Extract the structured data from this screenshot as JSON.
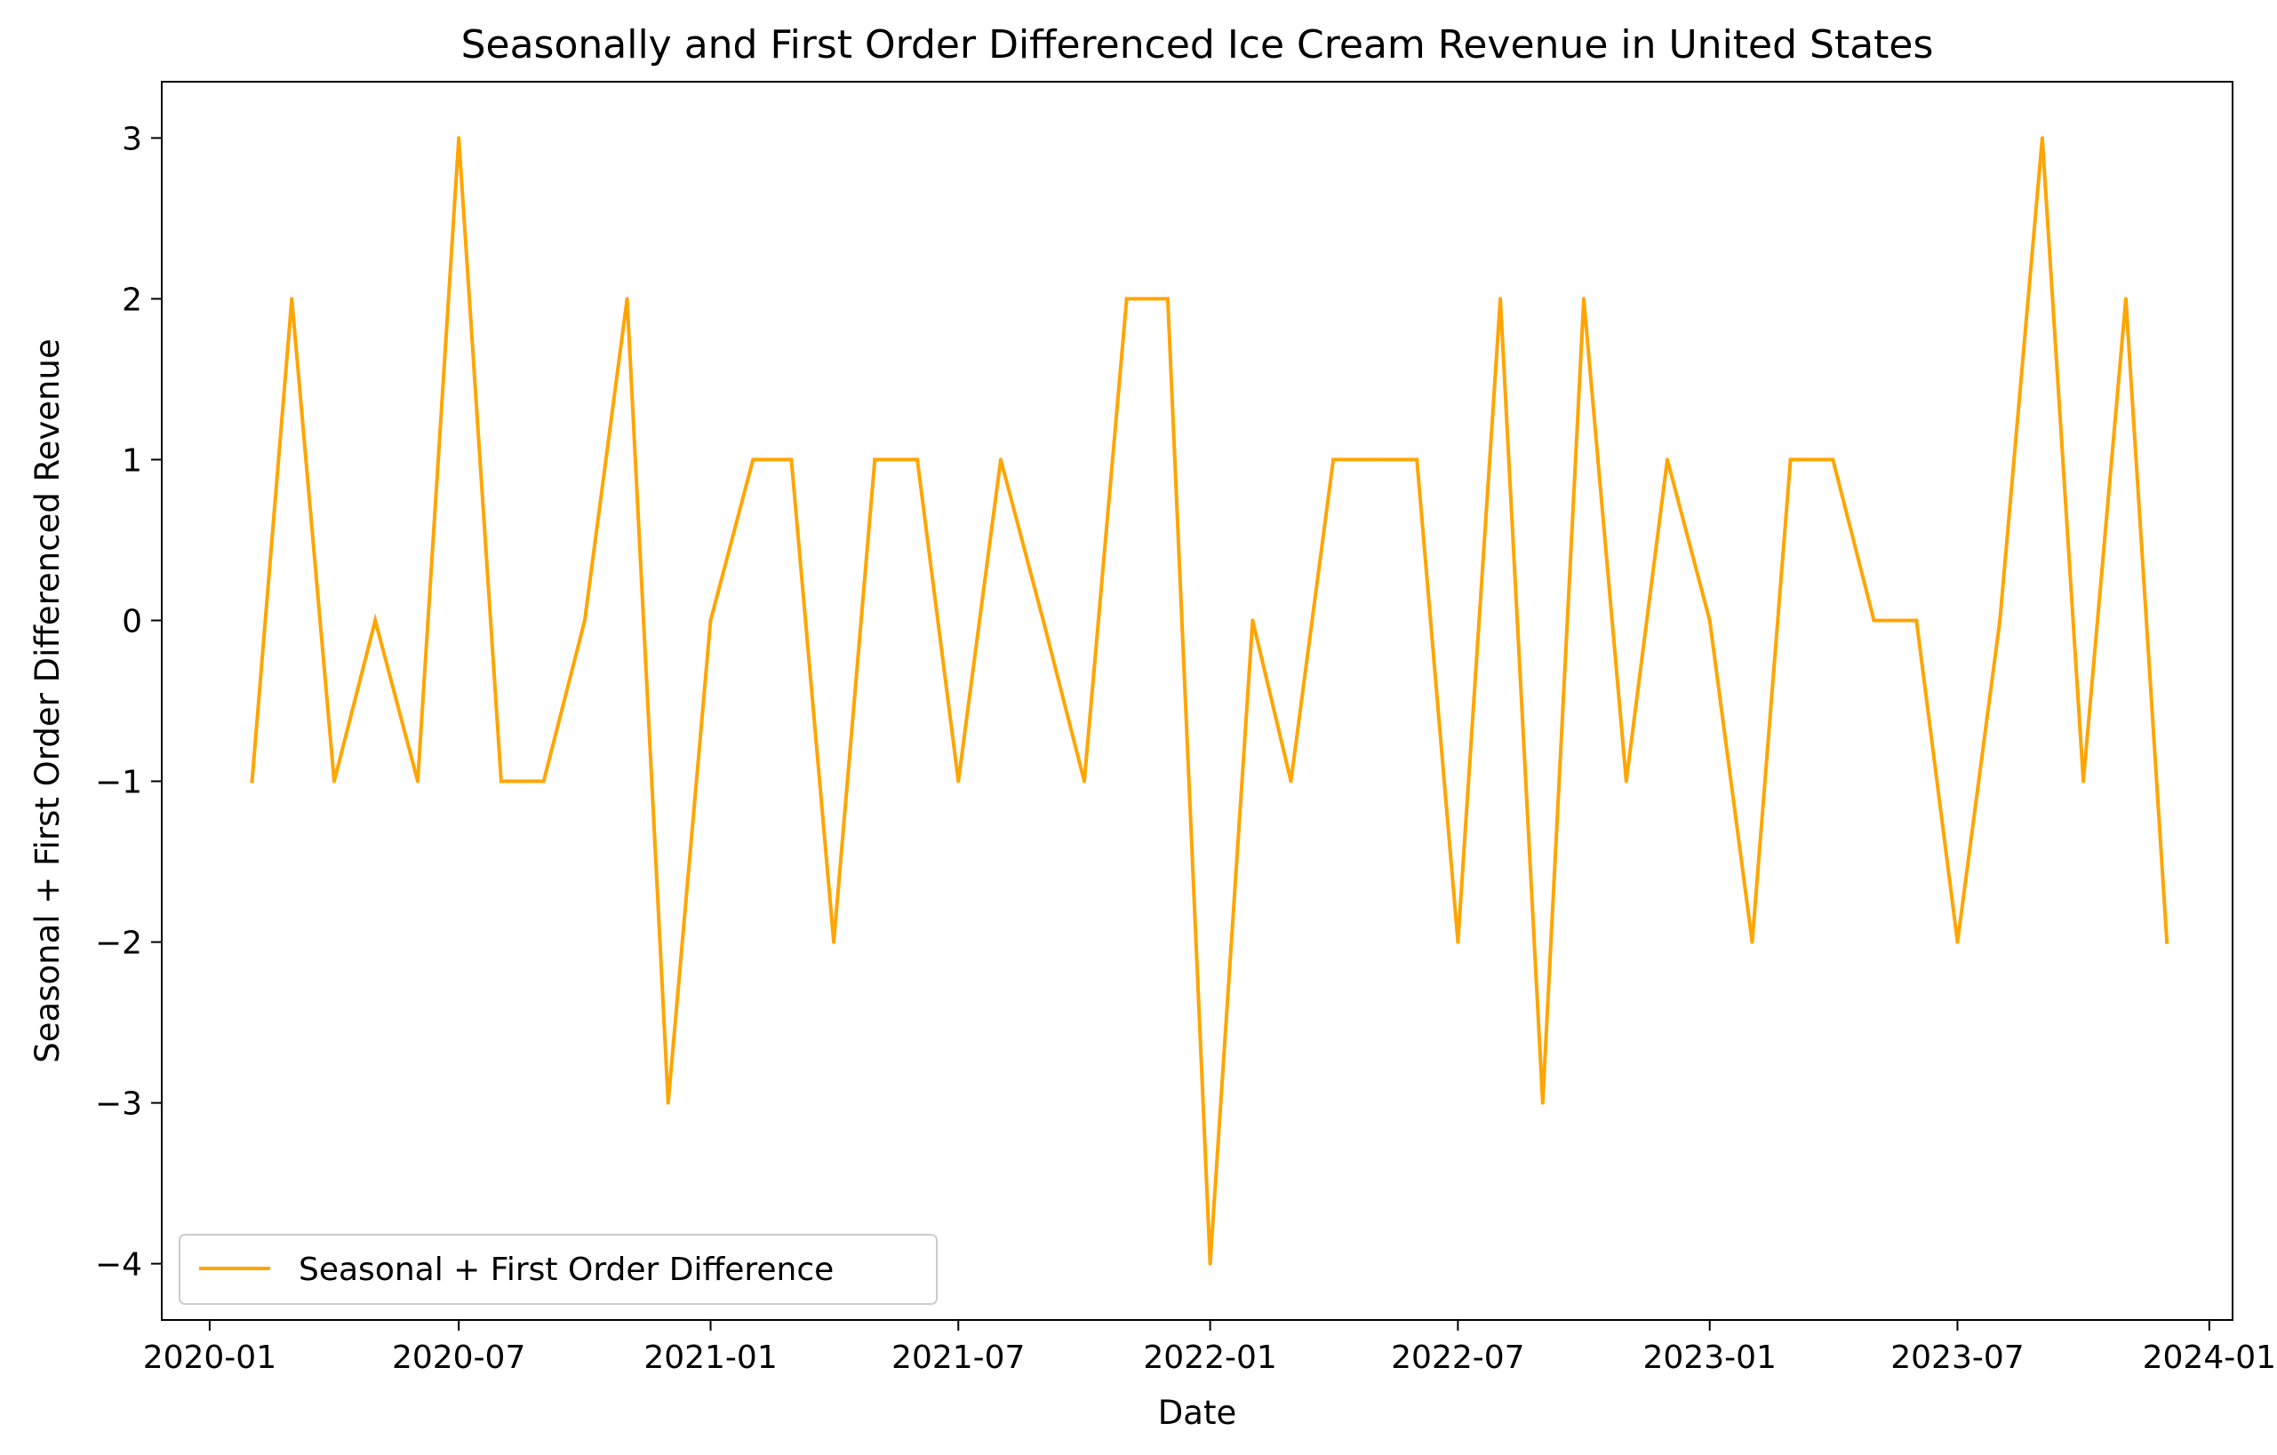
{
  "chart_data": {
    "type": "line",
    "title": "Seasonally and First Order Differenced Ice Cream Revenue in United States",
    "xlabel": "Date",
    "ylabel": "Seasonal + First Order Differenced Revenue",
    "x_ticks": [
      "2020-01",
      "2020-07",
      "2021-01",
      "2021-07",
      "2022-01",
      "2022-07",
      "2023-01",
      "2023-07",
      "2024-01"
    ],
    "y_ticks": [
      3,
      2,
      1,
      0,
      -1,
      -2,
      -3,
      -4
    ],
    "y_tick_labels": [
      "3",
      "2",
      "1",
      "0",
      "−1",
      "−2",
      "−3",
      "−4"
    ],
    "xlim": [
      "2019-11-27",
      "2024-01-18"
    ],
    "ylim": [
      -4.35,
      3.35
    ],
    "grid": false,
    "legend": {
      "placement": "lower-left"
    },
    "series": [
      {
        "name": "Seasonal + First Order Difference",
        "color": "#ffa500",
        "x": [
          "2020-02-01",
          "2020-03-01",
          "2020-04-01",
          "2020-05-01",
          "2020-06-01",
          "2020-07-01",
          "2020-08-01",
          "2020-09-01",
          "2020-10-01",
          "2020-11-01",
          "2020-12-01",
          "2021-01-01",
          "2021-02-01",
          "2021-03-01",
          "2021-04-01",
          "2021-05-01",
          "2021-06-01",
          "2021-07-01",
          "2021-08-01",
          "2021-09-01",
          "2021-10-01",
          "2021-11-01",
          "2021-12-01",
          "2022-01-01",
          "2022-02-01",
          "2022-03-01",
          "2022-04-01",
          "2022-05-01",
          "2022-06-01",
          "2022-07-01",
          "2022-08-01",
          "2022-09-01",
          "2022-10-01",
          "2022-11-01",
          "2022-12-01",
          "2023-01-01",
          "2023-02-01",
          "2023-03-01",
          "2023-04-01",
          "2023-05-01",
          "2023-06-01",
          "2023-07-01",
          "2023-08-01",
          "2023-09-01",
          "2023-10-01",
          "2023-11-01",
          "2023-12-01"
        ],
        "values": [
          -1,
          2,
          -1,
          0,
          -1,
          3,
          -1,
          -1,
          0,
          2,
          -3,
          0,
          1,
          1,
          -2,
          1,
          1,
          -1,
          1,
          0,
          -1,
          2,
          2,
          -4,
          0,
          -1,
          1,
          1,
          1,
          -2,
          2,
          -3,
          2,
          -1,
          1,
          0,
          -2,
          1,
          1,
          0,
          0,
          -2,
          0,
          3,
          -1,
          2,
          -2
        ]
      }
    ]
  }
}
